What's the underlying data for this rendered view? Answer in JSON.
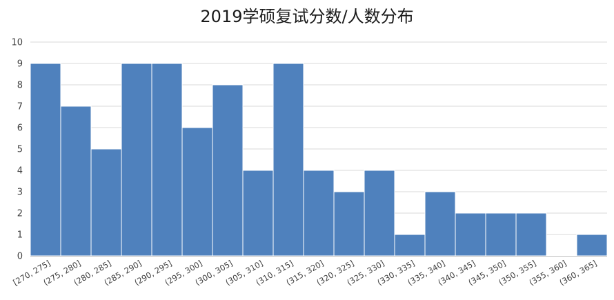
{
  "chart_data": {
    "type": "bar",
    "title": "2019学硕复试分数/人数分布",
    "xlabel": "",
    "ylabel": "",
    "ylim": [
      0,
      10
    ],
    "yticks": [
      0,
      1,
      2,
      3,
      4,
      5,
      6,
      7,
      8,
      9,
      10
    ],
    "grid": true,
    "legend": "none",
    "bar_color": "#4f81bd",
    "categories": [
      "[270, 275]",
      "(275, 280]",
      "(280, 285]",
      "(285, 290]",
      "(290, 295]",
      "(295, 300]",
      "(300, 305]",
      "(305, 310]",
      "(310, 315]",
      "(315, 320]",
      "(320, 325]",
      "(325, 330]",
      "(330, 335]",
      "(335, 340]",
      "(340, 345]",
      "(345, 350]",
      "(350, 355]",
      "(355, 360]",
      "(360, 365]"
    ],
    "values": [
      9,
      7,
      5,
      9,
      9,
      6,
      8,
      4,
      9,
      4,
      3,
      4,
      1,
      3,
      2,
      2,
      2,
      0,
      1
    ]
  }
}
